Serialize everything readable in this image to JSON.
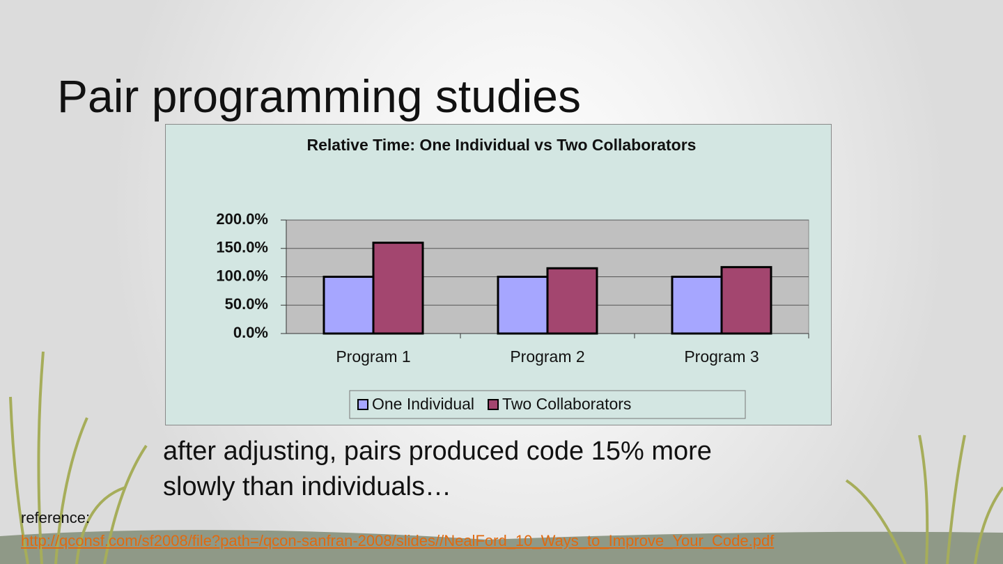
{
  "title": "Pair programming studies",
  "chart_data": {
    "type": "bar",
    "title": "Relative Time:  One Individual vs Two Collaborators",
    "categories": [
      "Program 1",
      "Program 2",
      "Program 3"
    ],
    "series": [
      {
        "name": "One Individual",
        "color": "#a6a6ff",
        "values": [
          100,
          100,
          100
        ]
      },
      {
        "name": "Two Collaborators",
        "color": "#a3466f",
        "values": [
          160,
          115,
          117
        ]
      }
    ],
    "ylim": [
      0,
      200
    ],
    "yticks": [
      {
        "value": 0,
        "label": "0.0%"
      },
      {
        "value": 50,
        "label": "50.0%"
      },
      {
        "value": 100,
        "label": "100.0%"
      },
      {
        "value": 150,
        "label": "150.0%"
      },
      {
        "value": 200,
        "label": "200.0%"
      }
    ],
    "grid": true
  },
  "caption": "after adjusting, pairs produced code 15% more slowly than individuals…",
  "reference": {
    "label": "reference:",
    "link": "http://qconsf.com/sf2008/file?path=/qcon-sanfran-2008/slides//NealFord_10_Ways_to_Improve_Your_Code.pdf"
  }
}
